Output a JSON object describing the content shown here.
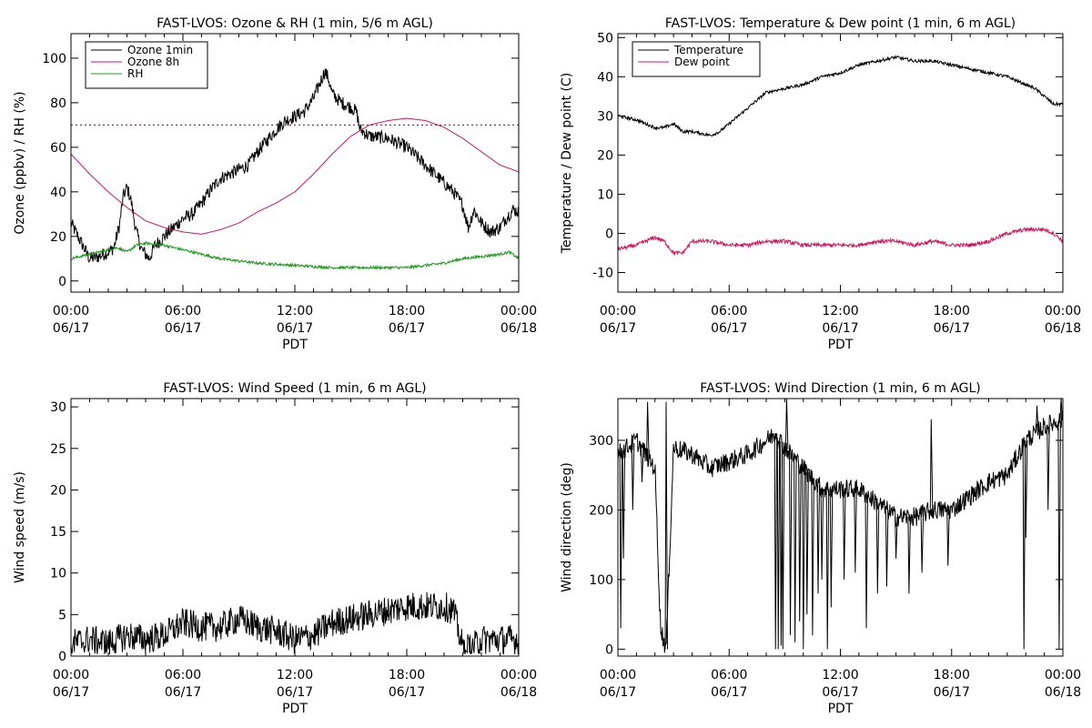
{
  "colors": {
    "ozone_1min": "#000000",
    "ozone_8h": "#d4145a",
    "rh": "#1a9a1a",
    "temperature": "#000000",
    "dew_point": "#d4145a",
    "threshold": "#e0102f"
  },
  "x_axis": {
    "range": [
      0,
      24
    ],
    "xlabel": "PDT",
    "ticks": [
      {
        "hours": 0,
        "time": "00:00",
        "date": "06/17"
      },
      {
        "hours": 6,
        "time": "06:00",
        "date": "06/17"
      },
      {
        "hours": 12,
        "time": "12:00",
        "date": "06/17"
      },
      {
        "hours": 18,
        "time": "18:00",
        "date": "06/17"
      },
      {
        "hours": 24,
        "time": "00:00",
        "date": "06/18"
      }
    ]
  },
  "chart_data": [
    {
      "id": "ozone",
      "type": "line",
      "title": "FAST-LVOS: Ozone & RH (1 min, 5/6 m AGL)",
      "xlabel": "PDT",
      "ylabel": "Ozone (ppbv) / RH (%)",
      "ylim": [
        -5,
        111
      ],
      "yticks": [
        0,
        20,
        40,
        60,
        80,
        100
      ],
      "legend": {
        "placement": "top-left",
        "entries": [
          "Ozone 1min",
          "Ozone 8h",
          "RH"
        ]
      },
      "reference_line": {
        "y": 70,
        "style": "dotted"
      },
      "series": [
        {
          "name": "Ozone 1min",
          "noise": 3,
          "x": [
            0,
            0.5,
            1,
            1.5,
            2,
            2.3,
            2.6,
            2.8,
            3,
            3.2,
            3.5,
            3.8,
            4,
            4.2,
            4.5,
            5,
            5.5,
            6,
            6.5,
            7,
            7.5,
            8,
            8.5,
            9,
            9.5,
            10,
            10.5,
            11,
            11.5,
            12,
            12.5,
            13,
            13.3,
            13.6,
            13.8,
            14,
            14.5,
            15,
            15.3,
            15.5,
            16,
            17,
            18,
            18.5,
            19,
            19.5,
            20,
            20.5,
            21,
            21.3,
            21.6,
            22,
            22.5,
            23,
            23.3,
            23.7,
            24
          ],
          "y": [
            26,
            18,
            10,
            11,
            13,
            15,
            25,
            38,
            42,
            37,
            22,
            14,
            12,
            10,
            16,
            20,
            24,
            28,
            30,
            35,
            41,
            46,
            48,
            50,
            52,
            58,
            63,
            68,
            72,
            74,
            76,
            82,
            88,
            94,
            91,
            84,
            80,
            78,
            76,
            68,
            65,
            64,
            60,
            56,
            52,
            48,
            44,
            40,
            34,
            24,
            32,
            26,
            22,
            24,
            28,
            32,
            31
          ]
        },
        {
          "name": "Ozone 8h",
          "noise": 0,
          "x": [
            0,
            1,
            2,
            3,
            4,
            5,
            6,
            7,
            8,
            9,
            10,
            11,
            12,
            13,
            14,
            15,
            16,
            17,
            18,
            19,
            20,
            21,
            22,
            23,
            24
          ],
          "y": [
            57,
            48,
            40,
            33,
            27,
            24,
            22,
            21,
            23,
            26,
            31,
            35,
            40,
            48,
            57,
            65,
            70,
            72,
            73,
            72,
            69,
            64,
            58,
            52,
            49
          ]
        },
        {
          "name": "RH",
          "noise": 0.6,
          "x": [
            0,
            1,
            2,
            2.5,
            3,
            3.5,
            4,
            5,
            6,
            7,
            8,
            9,
            10,
            12,
            14,
            16,
            18,
            20,
            21,
            22,
            23,
            23.5,
            24
          ],
          "y": [
            10,
            12,
            14,
            15,
            13,
            16,
            17,
            16,
            14,
            12,
            10,
            9,
            8,
            7,
            6,
            6,
            6,
            8,
            10,
            11,
            12,
            13,
            10
          ]
        }
      ]
    },
    {
      "id": "temp",
      "type": "line",
      "title": "FAST-LVOS: Temperature & Dew point (1 min, 6 m AGL)",
      "xlabel": "PDT",
      "ylabel": "Temperature / Dew point (C)",
      "ylim": [
        -15,
        51
      ],
      "yticks": [
        -10,
        0,
        10,
        20,
        30,
        40,
        50
      ],
      "legend": {
        "placement": "top-left",
        "entries": [
          "Temperature",
          "Dew point"
        ]
      },
      "series": [
        {
          "name": "Temperature",
          "noise": 0.4,
          "x": [
            0,
            1,
            2,
            2.5,
            3,
            3.5,
            4,
            5,
            5.5,
            6,
            6.5,
            7,
            7.5,
            8,
            9,
            10,
            11,
            12,
            13,
            14,
            15,
            16,
            17,
            18,
            19,
            20,
            21,
            22,
            22.5,
            23,
            23.5,
            24
          ],
          "y": [
            30,
            29,
            27,
            27,
            28,
            26,
            26,
            25,
            26,
            28,
            30,
            32,
            34,
            36,
            37,
            38,
            40,
            41,
            43,
            44,
            45,
            44,
            44,
            43,
            42,
            41,
            40,
            38,
            37,
            35,
            33,
            33
          ]
        },
        {
          "name": "Dew point",
          "noise": 0.5,
          "x": [
            0,
            1,
            2,
            2.5,
            3,
            3.5,
            4,
            5,
            6,
            7,
            8,
            9,
            10,
            11,
            12,
            13,
            14,
            15,
            16,
            17,
            18,
            19,
            20,
            21,
            22,
            23,
            23.5,
            24
          ],
          "y": [
            -4,
            -3,
            -1,
            -2,
            -5,
            -5,
            -2,
            -2,
            -3,
            -3,
            -2,
            -2,
            -3,
            -3,
            -3,
            -3,
            -2,
            -2,
            -3,
            -2,
            -3,
            -3,
            -2,
            0,
            1,
            1,
            0,
            -2
          ]
        }
      ]
    },
    {
      "id": "wspd",
      "type": "line",
      "title": "FAST-LVOS: Wind Speed (1 min, 6 m AGL)",
      "xlabel": "PDT",
      "ylabel": "Wind speed (m/s)",
      "ylim": [
        0,
        31
      ],
      "yticks": [
        0,
        5,
        10,
        15,
        20,
        25,
        30
      ],
      "series": [
        {
          "name": "",
          "noise": 1.8,
          "x": [
            0,
            1,
            2,
            3,
            4,
            5,
            6,
            7,
            8,
            9,
            10,
            11,
            12,
            13,
            14,
            15,
            16,
            17,
            18,
            19,
            20,
            20.5,
            21,
            21.5,
            22,
            23,
            24
          ],
          "y": [
            1.5,
            2,
            1.5,
            2.5,
            2,
            2.5,
            4,
            3.5,
            3.5,
            4.5,
            3.5,
            3,
            2,
            2.5,
            4,
            4.5,
            5,
            5.5,
            6,
            6,
            6,
            5.5,
            1,
            1,
            2,
            2,
            2
          ]
        }
      ]
    },
    {
      "id": "wdir",
      "type": "line",
      "title": "FAST-LVOS: Wind Direction (1 min, 6 m AGL)",
      "xlabel": "PDT",
      "ylabel": "Wind direction (deg)",
      "ylim": [
        -10,
        360
      ],
      "yticks": [
        0,
        100,
        200,
        300
      ],
      "series": [
        {
          "name": "",
          "noise": 14,
          "x": [
            0,
            1,
            2,
            2.3,
            2.6,
            3,
            4,
            5,
            6,
            7,
            8,
            8.5,
            9,
            10,
            11,
            12,
            13,
            14,
            15,
            16,
            17,
            18,
            19,
            20,
            21,
            22,
            23,
            24
          ],
          "y": [
            280,
            300,
            260,
            30,
            0,
            290,
            280,
            260,
            270,
            280,
            300,
            310,
            290,
            260,
            230,
            230,
            230,
            210,
            190,
            190,
            200,
            200,
            220,
            240,
            250,
            300,
            320,
            330
          ]
        }
      ],
      "spikes": [
        {
          "t": 0.15,
          "d": 30
        },
        {
          "t": 0.3,
          "d": 130
        },
        {
          "t": 0.8,
          "d": 200
        },
        {
          "t": 1.3,
          "d": 240
        },
        {
          "t": 1.6,
          "d": 355
        },
        {
          "t": 2.6,
          "d": 355
        },
        {
          "t": 8.5,
          "d": 0
        },
        {
          "t": 8.65,
          "d": 0
        },
        {
          "t": 8.8,
          "d": 5
        },
        {
          "t": 8.9,
          "d": 0
        },
        {
          "t": 9.1,
          "d": 360
        },
        {
          "t": 9.3,
          "d": 20
        },
        {
          "t": 9.55,
          "d": 10
        },
        {
          "t": 9.8,
          "d": 40
        },
        {
          "t": 10.0,
          "d": 0
        },
        {
          "t": 10.2,
          "d": 50
        },
        {
          "t": 10.5,
          "d": 20
        },
        {
          "t": 10.8,
          "d": 80
        },
        {
          "t": 11.0,
          "d": 100
        },
        {
          "t": 11.3,
          "d": 0
        },
        {
          "t": 11.5,
          "d": 60
        },
        {
          "t": 12.2,
          "d": 100
        },
        {
          "t": 12.8,
          "d": 110
        },
        {
          "t": 13.4,
          "d": 30
        },
        {
          "t": 14.0,
          "d": 80
        },
        {
          "t": 14.5,
          "d": 90
        },
        {
          "t": 15.0,
          "d": 130
        },
        {
          "t": 15.7,
          "d": 80
        },
        {
          "t": 16.4,
          "d": 110
        },
        {
          "t": 16.9,
          "d": 330
        },
        {
          "t": 17.8,
          "d": 120
        },
        {
          "t": 21.9,
          "d": 0
        },
        {
          "t": 22.0,
          "d": 160
        },
        {
          "t": 22.6,
          "d": 350
        },
        {
          "t": 23.2,
          "d": 200
        },
        {
          "t": 23.8,
          "d": 0
        },
        {
          "t": 23.9,
          "d": 360
        }
      ]
    }
  ]
}
